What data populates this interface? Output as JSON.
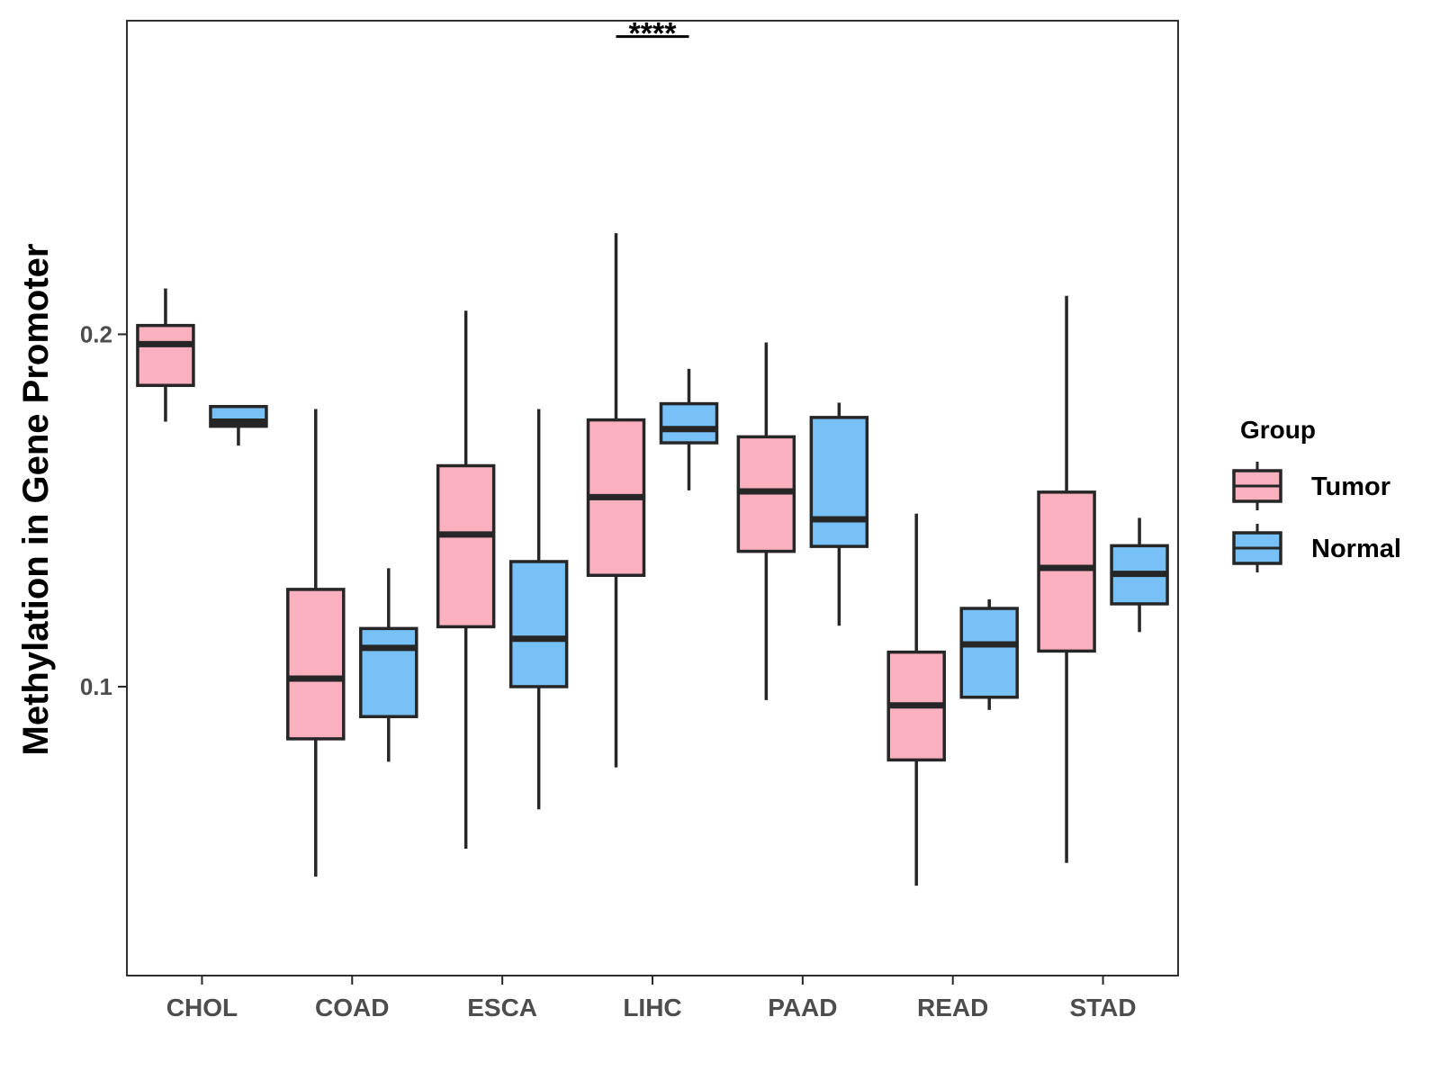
{
  "chart_data": {
    "type": "boxplot",
    "title": "",
    "xlabel": "",
    "ylabel": "Methylation in Gene Promoter",
    "ylim": [
      0.018,
      0.289
    ],
    "yticks": [
      0.1,
      0.2
    ],
    "ytick_labels": [
      "0.1",
      "0.2"
    ],
    "categories": [
      "CHOL",
      "COAD",
      "ESCA",
      "LIHC",
      "PAAD",
      "READ",
      "STAD"
    ],
    "legend": {
      "title": "Group",
      "position": "right",
      "entries": [
        {
          "name": "Tumor",
          "color": "#FBB0C0"
        },
        {
          "name": "Normal",
          "color": "#78C1F7"
        }
      ]
    },
    "series": [
      {
        "name": "Tumor",
        "color": "#FBB0C0",
        "boxes": [
          {
            "category": "CHOL",
            "min": 0.1752,
            "q1": 0.1855,
            "median": 0.1972,
            "q3": 0.2025,
            "max": 0.213
          },
          {
            "category": "COAD",
            "min": 0.0461,
            "q1": 0.0852,
            "median": 0.1023,
            "q3": 0.1276,
            "max": 0.1788
          },
          {
            "category": "ESCA",
            "min": 0.054,
            "q1": 0.117,
            "median": 0.1432,
            "q3": 0.1627,
            "max": 0.2067
          },
          {
            "category": "LIHC",
            "min": 0.0771,
            "q1": 0.1316,
            "median": 0.1538,
            "q3": 0.1757,
            "max": 0.2287
          },
          {
            "category": "PAAD",
            "min": 0.0962,
            "q1": 0.1384,
            "median": 0.1554,
            "q3": 0.1709,
            "max": 0.1977
          },
          {
            "category": "READ",
            "min": 0.0435,
            "q1": 0.0792,
            "median": 0.0947,
            "q3": 0.1098,
            "max": 0.1491
          },
          {
            "category": "STAD",
            "min": 0.05,
            "q1": 0.1101,
            "median": 0.1337,
            "q3": 0.1552,
            "max": 0.2109
          }
        ]
      },
      {
        "name": "Normal",
        "color": "#78C1F7",
        "boxes": [
          {
            "category": "CHOL",
            "min": 0.1684,
            "q1": 0.1739,
            "median": 0.1752,
            "q3": 0.1795,
            "max": 0.1795
          },
          {
            "category": "COAD",
            "min": 0.0787,
            "q1": 0.0915,
            "median": 0.111,
            "q3": 0.1165,
            "max": 0.1336
          },
          {
            "category": "ESCA",
            "min": 0.0652,
            "q1": 0.1,
            "median": 0.1136,
            "q3": 0.1355,
            "max": 0.1788
          },
          {
            "category": "LIHC",
            "min": 0.1557,
            "q1": 0.1692,
            "median": 0.1731,
            "q3": 0.1803,
            "max": 0.1902
          },
          {
            "category": "PAAD",
            "min": 0.1173,
            "q1": 0.1398,
            "median": 0.1475,
            "q3": 0.1764,
            "max": 0.1806
          },
          {
            "category": "READ",
            "min": 0.0934,
            "q1": 0.097,
            "median": 0.112,
            "q3": 0.1222,
            "max": 0.1248
          },
          {
            "category": "STAD",
            "min": 0.1155,
            "q1": 0.1235,
            "median": 0.132,
            "q3": 0.14,
            "max": 0.1479
          }
        ]
      }
    ],
    "annotations": [
      {
        "category": "LIHC",
        "text": "****",
        "y": 0.2845
      }
    ]
  }
}
